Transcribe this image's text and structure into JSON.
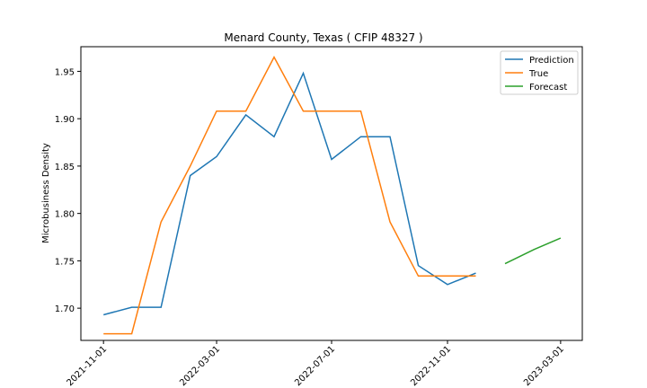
{
  "chart_data": {
    "type": "line",
    "title": "Menard County, Texas ( CFIP 48327 )",
    "xlabel": "",
    "ylabel": "Microbusiness Density",
    "x_range": [
      "2021-10-08",
      "2023-03-24"
    ],
    "ylim": [
      1.666,
      1.976
    ],
    "x_ticks": [
      "2021-11-01",
      "2022-03-01",
      "2022-07-01",
      "2022-11-01",
      "2023-03-01"
    ],
    "y_ticks": [
      1.7,
      1.75,
      1.8,
      1.85,
      1.9,
      1.95
    ],
    "y_tick_labels": [
      "1.70",
      "1.75",
      "1.80",
      "1.85",
      "1.90",
      "1.95"
    ],
    "grid": false,
    "legend_position": "top-right",
    "series": [
      {
        "name": "Prediction",
        "color": "#1f77b4",
        "x": [
          "2021-11-01",
          "2021-12-01",
          "2022-01-01",
          "2022-02-01",
          "2022-03-01",
          "2022-04-01",
          "2022-05-01",
          "2022-06-01",
          "2022-07-01",
          "2022-08-01",
          "2022-09-01",
          "2022-10-01",
          "2022-11-01",
          "2022-12-01"
        ],
        "y": [
          1.693,
          1.701,
          1.701,
          1.84,
          1.86,
          1.904,
          1.881,
          1.948,
          1.857,
          1.881,
          1.881,
          1.745,
          1.725,
          1.737
        ]
      },
      {
        "name": "True",
        "color": "#ff7f0e",
        "x": [
          "2021-11-01",
          "2021-12-01",
          "2022-01-01",
          "2022-02-01",
          "2022-03-01",
          "2022-04-01",
          "2022-05-01",
          "2022-06-01",
          "2022-07-01",
          "2022-08-01",
          "2022-09-01",
          "2022-10-01",
          "2022-11-01",
          "2022-12-01"
        ],
        "y": [
          1.673,
          1.673,
          1.791,
          1.85,
          1.908,
          1.908,
          1.965,
          1.908,
          1.908,
          1.908,
          1.791,
          1.734,
          1.734,
          1.734
        ]
      },
      {
        "name": "Forecast",
        "color": "#2ca02c",
        "x": [
          "2023-01-01",
          "2023-02-01",
          "2023-03-01"
        ],
        "y": [
          1.747,
          1.762,
          1.774
        ]
      }
    ]
  }
}
